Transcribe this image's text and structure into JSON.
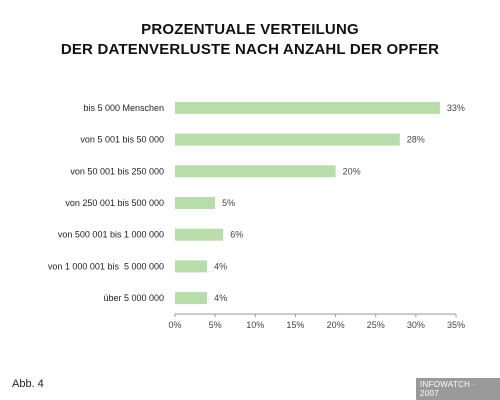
{
  "title_lines": [
    "PROZENTUALE VERTEILUNG",
    "DER DATENVERLUSTE NACH ANZAHL DER OPFER"
  ],
  "figure_label": "Abb. 4",
  "credit": "INFOWATCH · 2007",
  "colors": {
    "bar": "#b9dcab",
    "axis": "#999999",
    "text": "#222222"
  },
  "chart_data": {
    "type": "bar",
    "orientation": "horizontal",
    "title": "PROZENTUALE VERTEILUNG DER DATENVERLUSTE NACH ANZAHL DER OPFER",
    "categories": [
      "bis 5 000 Menschen",
      "von 5 001 bis 50 000",
      "von 50 001 bis 250 000",
      "von 250 001 bis 500 000",
      "von 500 001 bis 1 000 000",
      "von 1 000 001 bis  5 000 000",
      "über 5 000 000"
    ],
    "values": [
      33,
      28,
      20,
      5,
      6,
      4,
      4
    ],
    "value_labels": [
      "33%",
      "28%",
      "20%",
      "5%",
      "6%",
      "4%",
      "4%"
    ],
    "xlim": [
      0,
      35
    ],
    "xticks": [
      0,
      5,
      10,
      15,
      20,
      25,
      30,
      35
    ],
    "xtick_labels": [
      "0%",
      "5%",
      "10%",
      "15%",
      "20%",
      "25%",
      "30%",
      "35%"
    ],
    "grid": false,
    "legend": "none"
  }
}
